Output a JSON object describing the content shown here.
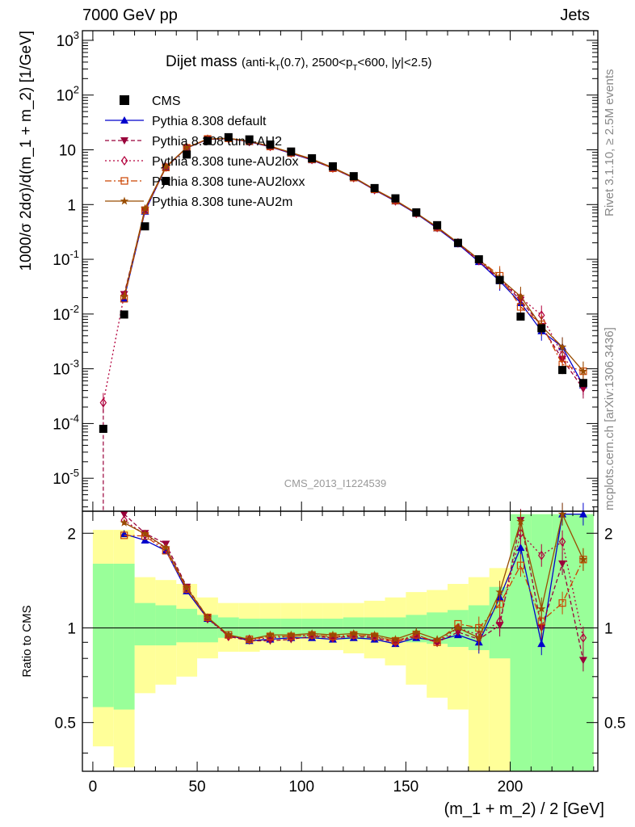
{
  "header": {
    "left": "7000 GeV pp",
    "right": "Jets",
    "plot_title_main": "Dijet mass",
    "plot_title_sub": "(anti-k",
    "plot_title_sub_T": "T",
    "plot_title_sub_rest": "(0.7), 2500<p",
    "plot_title_sub_rest2": "<600, |y|<2.5)",
    "analysis_id": "CMS_2013_I1224539",
    "side_top": "Rivet 3.1.10, ≥ 2.5M events",
    "side_bottom": "mcplots.cern.ch [arXiv:1306.3436]"
  },
  "colors": {
    "band_inner": "#99ff99",
    "band_outer": "#ffff99",
    "cms": "#000000",
    "default": "#0000cc",
    "au2": "#99003a",
    "au2lox": "#b3003c",
    "au2loxx": "#cc4400",
    "au2m": "#994c00"
  },
  "chart_data": [
    {
      "type": "scatter",
      "yscale": "log",
      "ylabel": "1000/σ 2dσ)/d(m_1 + m_2) [1/GeV]",
      "xlim": [
        -5,
        242
      ],
      "ylim": [
        2.5e-06,
        1500
      ],
      "y_tick_labels": [
        "10^-5",
        "10^-4",
        "10^-3",
        "10^-2",
        "10^-1",
        "1",
        "10",
        "10^2",
        "10^3"
      ],
      "legend": [
        "CMS",
        "Pythia 8.308 default",
        "Pythia 8.308 tune-AU2",
        "Pythia 8.308 tune-AU2lox",
        "Pythia 8.308 tune-AU2loxx",
        "Pythia 8.308 tune-AU2m"
      ],
      "legend_position": "top-left",
      "x": [
        5,
        15,
        25,
        35,
        45,
        55,
        65,
        75,
        85,
        95,
        105,
        115,
        125,
        135,
        145,
        155,
        165,
        175,
        185,
        195,
        205,
        215,
        225,
        235
      ],
      "series": [
        {
          "name": "CMS",
          "values": [
            8e-05,
            0.0098,
            0.4,
            2.7,
            8.2,
            14.5,
            17.0,
            15.5,
            12.5,
            9.3,
            7.0,
            5.0,
            3.3,
            2.0,
            1.3,
            0.72,
            0.42,
            0.2,
            0.1,
            0.042,
            0.009,
            0.0055,
            0.00095,
            0.00055
          ]
        },
        {
          "name": "Pythia 8.308 default",
          "values": [
            null,
            0.019,
            0.75,
            4.8,
            10.8,
            15.5,
            16.2,
            14.0,
            11.3,
            8.6,
            6.5,
            4.6,
            3.05,
            1.85,
            1.15,
            0.68,
            0.37,
            0.19,
            0.09,
            0.04,
            0.016,
            0.0049,
            0.0025,
            0.0005
          ]
        },
        {
          "name": "Pythia 8.308 tune-AU2",
          "values": [
            null,
            0.023,
            0.8,
            4.9,
            10.9,
            15.6,
            16.0,
            14.1,
            11.4,
            8.7,
            6.6,
            4.6,
            3.1,
            1.85,
            1.17,
            0.69,
            0.38,
            0.195,
            0.092,
            0.043,
            0.018,
            0.006,
            0.0015,
            0.00043
          ]
        },
        {
          "name": "Pythia 8.308 tune-AU2lox",
          "values": [
            0.00024,
            0.022,
            0.8,
            4.85,
            10.9,
            15.6,
            16.1,
            14.2,
            11.5,
            8.8,
            6.65,
            4.65,
            3.1,
            1.87,
            1.17,
            0.69,
            0.38,
            0.2,
            0.095,
            0.043,
            0.02,
            0.0095,
            0.0018,
            0.0005
          ]
        },
        {
          "name": "Pythia 8.308 tune-AU2loxx",
          "values": [
            null,
            0.019,
            0.79,
            4.75,
            10.9,
            15.8,
            16.2,
            14.3,
            11.5,
            8.8,
            6.7,
            4.6,
            3.1,
            1.9,
            1.18,
            0.7,
            0.38,
            0.2,
            0.1,
            0.05,
            0.0135,
            0.0065,
            0.0012,
            0.0009
          ]
        },
        {
          "name": "Pythia 8.308 tune-AU2m",
          "values": [
            null,
            0.021,
            0.85,
            4.9,
            11.0,
            15.7,
            16.3,
            14.3,
            11.7,
            8.9,
            6.8,
            4.75,
            3.15,
            1.9,
            1.2,
            0.7,
            0.39,
            0.2,
            0.1,
            0.045,
            0.021,
            0.006,
            0.0025,
            0.0009
          ]
        }
      ]
    },
    {
      "type": "line",
      "yscale": "log",
      "ylabel": "Ratio to CMS",
      "xlabel": "(m_1 + m_2) / 2 [GeV]",
      "xlim": [
        -5,
        242
      ],
      "ylim": [
        0.35,
        2.35
      ],
      "x_tick_labels": [
        "0",
        "50",
        "100",
        "150",
        "200"
      ],
      "y_tick_labels": [
        "0.5",
        "1",
        "2"
      ],
      "reference": 1,
      "band_bins": [
        [
          0,
          10
        ],
        [
          10,
          20
        ],
        [
          20,
          30
        ],
        [
          30,
          40
        ],
        [
          40,
          50
        ],
        [
          50,
          60
        ],
        [
          60,
          70
        ],
        [
          70,
          80
        ],
        [
          80,
          90
        ],
        [
          90,
          100
        ],
        [
          100,
          110
        ],
        [
          110,
          120
        ],
        [
          120,
          130
        ],
        [
          130,
          140
        ],
        [
          140,
          150
        ],
        [
          150,
          160
        ],
        [
          160,
          170
        ],
        [
          170,
          180
        ],
        [
          180,
          190
        ],
        [
          190,
          200
        ],
        [
          200,
          210
        ],
        [
          210,
          220
        ],
        [
          220,
          230
        ],
        [
          230,
          240
        ]
      ],
      "band_inner": [
        [
          0.56,
          1.6
        ],
        [
          0.55,
          1.6
        ],
        [
          0.88,
          1.2
        ],
        [
          0.88,
          1.18
        ],
        [
          0.9,
          1.15
        ],
        [
          0.9,
          1.1
        ],
        [
          0.93,
          1.08
        ],
        [
          0.93,
          1.07
        ],
        [
          0.93,
          1.07
        ],
        [
          0.93,
          1.07
        ],
        [
          0.93,
          1.07
        ],
        [
          0.93,
          1.07
        ],
        [
          0.92,
          1.08
        ],
        [
          0.92,
          1.08
        ],
        [
          0.92,
          1.08
        ],
        [
          0.9,
          1.1
        ],
        [
          0.89,
          1.12
        ],
        [
          0.87,
          1.14
        ],
        [
          0.85,
          1.18
        ],
        [
          0.8,
          1.35
        ],
        [
          0.35,
          2.3
        ],
        [
          0.35,
          2.3
        ],
        [
          0.35,
          2.3
        ],
        [
          0.35,
          2.3
        ]
      ],
      "band_outer": [
        [
          0.42,
          2.05
        ],
        [
          0.36,
          2.05
        ],
        [
          0.62,
          1.45
        ],
        [
          0.66,
          1.42
        ],
        [
          0.7,
          1.38
        ],
        [
          0.8,
          1.25
        ],
        [
          0.84,
          1.2
        ],
        [
          0.84,
          1.2
        ],
        [
          0.85,
          1.2
        ],
        [
          0.85,
          1.2
        ],
        [
          0.85,
          1.2
        ],
        [
          0.85,
          1.2
        ],
        [
          0.83,
          1.2
        ],
        [
          0.8,
          1.22
        ],
        [
          0.76,
          1.25
        ],
        [
          0.66,
          1.3
        ],
        [
          0.6,
          1.32
        ],
        [
          0.55,
          1.38
        ],
        [
          0.35,
          1.45
        ],
        [
          0.35,
          1.55
        ],
        [
          0.35,
          2.3
        ],
        [
          0.35,
          2.3
        ],
        [
          0.35,
          2.3
        ],
        [
          0.35,
          2.3
        ]
      ],
      "x": [
        15,
        25,
        35,
        45,
        55,
        65,
        75,
        85,
        95,
        105,
        115,
        125,
        135,
        145,
        155,
        165,
        175,
        185,
        195,
        205,
        215,
        225,
        235
      ],
      "series": [
        {
          "name": "Pythia 8.308 default",
          "values": [
            1.99,
            1.9,
            1.76,
            1.31,
            1.07,
            0.95,
            0.91,
            0.92,
            0.93,
            0.93,
            0.92,
            0.93,
            0.92,
            0.89,
            0.93,
            0.91,
            0.95,
            0.9,
            1.25,
            1.8,
            0.89,
            2.3,
            2.3
          ]
        },
        {
          "name": "Pythia 8.308 tune-AU2",
          "values": [
            2.3,
            2.0,
            1.85,
            1.35,
            1.08,
            0.94,
            0.91,
            0.91,
            0.92,
            0.94,
            0.93,
            0.94,
            0.93,
            0.9,
            0.94,
            0.9,
            0.97,
            0.92,
            1.02,
            2.2,
            1.0,
            1.6,
            0.79
          ]
        },
        {
          "name": "Pythia 8.308 tune-AU2lox",
          "values": [
            2.2,
            1.98,
            1.79,
            1.33,
            1.07,
            0.94,
            0.92,
            0.93,
            0.94,
            0.95,
            0.93,
            0.95,
            0.94,
            0.9,
            0.95,
            0.9,
            1.0,
            0.95,
            1.05,
            2.0,
            1.7,
            1.88,
            0.93
          ]
        },
        {
          "name": "Pythia 8.308 tune-AU2loxx",
          "values": [
            1.97,
            1.96,
            1.76,
            1.33,
            1.08,
            0.95,
            0.92,
            0.94,
            0.94,
            0.95,
            0.94,
            0.95,
            0.94,
            0.91,
            0.95,
            0.9,
            1.03,
            1.0,
            1.19,
            1.58,
            1.05,
            1.2,
            1.65
          ]
        },
        {
          "name": "Pythia 8.308 tune-AU2m",
          "values": [
            2.16,
            1.99,
            1.8,
            1.34,
            1.08,
            0.95,
            0.92,
            0.95,
            0.95,
            0.96,
            0.95,
            0.96,
            0.95,
            0.92,
            0.97,
            0.92,
            1.0,
            0.93,
            1.3,
            2.18,
            1.15,
            2.3,
            1.65
          ]
        }
      ]
    }
  ]
}
